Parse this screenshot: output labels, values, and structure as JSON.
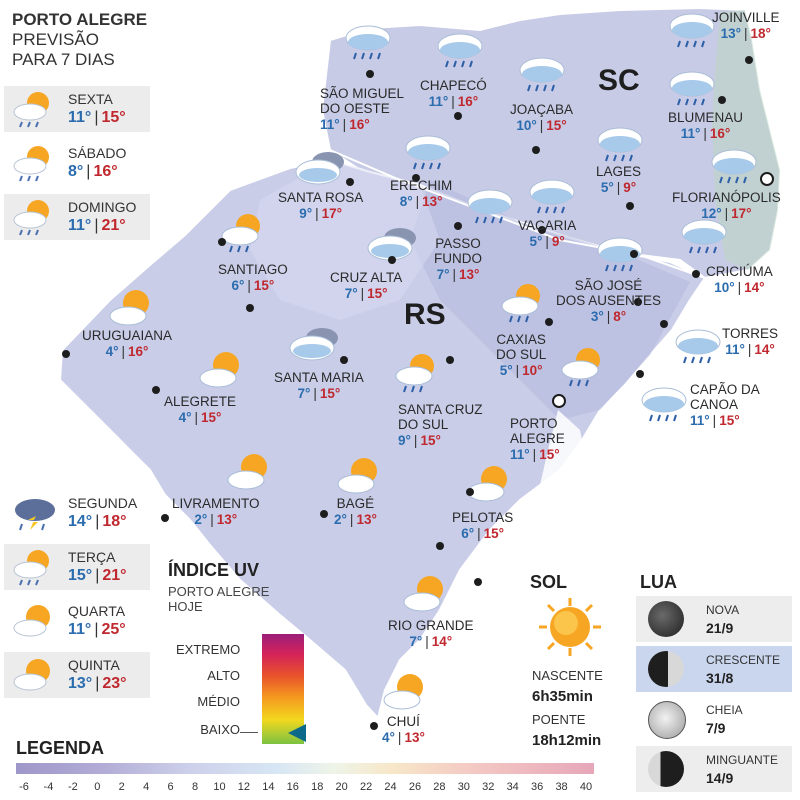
{
  "header": {
    "line1": "PORTO ALEGRE",
    "line2": "PREVISÃO",
    "line3": "PARA 7 DIAS"
  },
  "forecast": [
    {
      "day": "SEXTA",
      "min": "11°",
      "max": "15°",
      "icon": "sun-cloud-rain-icon"
    },
    {
      "day": "SÁBADO",
      "min": "8°",
      "max": "16°",
      "icon": "sun-cloud-rain-icon"
    },
    {
      "day": "DOMINGO",
      "min": "11°",
      "max": "21°",
      "icon": "sun-cloud-rain-icon"
    },
    {
      "day": "SEGUNDA",
      "min": "14°",
      "max": "18°",
      "icon": "storm-cloud-icon"
    },
    {
      "day": "TERÇA",
      "min": "15°",
      "max": "21°",
      "icon": "sun-cloud-rain-icon"
    },
    {
      "day": "QUARTA",
      "min": "11°",
      "max": "25°",
      "icon": "sun-cloud-icon"
    },
    {
      "day": "QUINTA",
      "min": "13°",
      "max": "23°",
      "icon": "sun-cloud-icon"
    }
  ],
  "states": {
    "sc": "SC",
    "rs": "RS"
  },
  "cities": [
    {
      "name": "JOINVILLE",
      "min": "13°",
      "max": "18°",
      "icon": "rain-cloud-icon"
    },
    {
      "name": "CHAPECÓ",
      "min": "11°",
      "max": "16°",
      "icon": "rain-cloud-icon"
    },
    {
      "name": "SÃO MIGUEL DO OESTE",
      "name_l1": "SÃO MIGUEL",
      "name_l2": "DO OESTE",
      "min": "11°",
      "max": "16°",
      "icon": "rain-cloud-icon"
    },
    {
      "name": "JOAÇABA",
      "min": "10°",
      "max": "15°",
      "icon": "rain-cloud-icon"
    },
    {
      "name": "BLUMENAU",
      "min": "11°",
      "max": "16°",
      "icon": "rain-cloud-icon"
    },
    {
      "name": "LAGES",
      "min": "5°",
      "max": "9°",
      "icon": "rain-cloud-icon"
    },
    {
      "name": "FLORIANÓPOLIS",
      "min": "12°",
      "max": "17°",
      "icon": "rain-cloud-icon"
    },
    {
      "name": "SANTA ROSA",
      "min": "9°",
      "max": "17°",
      "icon": "cloudy-icon"
    },
    {
      "name": "ERECHIM",
      "min": "8°",
      "max": "13°",
      "icon": "rain-cloud-icon"
    },
    {
      "name": "PASSO FUNDO",
      "name_l1": "PASSO",
      "name_l2": "FUNDO",
      "min": "7°",
      "max": "13°",
      "icon": "rain-cloud-icon"
    },
    {
      "name": "VACARIA",
      "min": "5°",
      "max": "9°",
      "icon": "rain-cloud-icon"
    },
    {
      "name": "SANTIAGO",
      "min": "6°",
      "max": "15°",
      "icon": "sun-cloud-rain-icon"
    },
    {
      "name": "CRUZ ALTA",
      "min": "7°",
      "max": "15°",
      "icon": "cloudy-icon"
    },
    {
      "name": "SÃO JOSÉ DOS AUSENTES",
      "name_l1": "SÃO JOSÉ",
      "name_l2": "DOS AUSENTES",
      "min": "3°",
      "max": "8°",
      "icon": "rain-cloud-icon"
    },
    {
      "name": "CRICIÚMA",
      "min": "10°",
      "max": "14°",
      "icon": "rain-cloud-icon"
    },
    {
      "name": "URUGUAIANA",
      "min": "4°",
      "max": "16°",
      "icon": "sun-cloud-icon"
    },
    {
      "name": "CAXIAS DO SUL",
      "name_l1": "CAXIAS",
      "name_l2": "DO SUL",
      "min": "5°",
      "max": "10°",
      "icon": "sun-cloud-rain-icon"
    },
    {
      "name": "TORRES",
      "min": "11°",
      "max": "14°",
      "icon": "rain-cloud-icon"
    },
    {
      "name": "SANTA MARIA",
      "min": "7°",
      "max": "15°",
      "icon": "cloudy-icon"
    },
    {
      "name": "ALEGRETE",
      "min": "4°",
      "max": "15°",
      "icon": "sun-cloud-icon"
    },
    {
      "name": "SANTA CRUZ DO SUL",
      "name_l1": "SANTA CRUZ",
      "name_l2": "DO SUL",
      "min": "9°",
      "max": "15°",
      "icon": "sun-cloud-rain-icon"
    },
    {
      "name": "CAPÃO DA CANOA",
      "name_l1": "CAPÃO DA",
      "name_l2": "CANOA",
      "min": "11°",
      "max": "15°",
      "icon": "rain-cloud-icon"
    },
    {
      "name": "PORTO ALEGRE",
      "name_l1": "PORTO",
      "name_l2": "ALEGRE",
      "min": "11°",
      "max": "15°",
      "icon": "sun-cloud-rain-icon"
    },
    {
      "name": "LIVRAMENTO",
      "min": "2°",
      "max": "13°",
      "icon": "sun-cloud-icon"
    },
    {
      "name": "BAGÉ",
      "min": "2°",
      "max": "13°",
      "icon": "sun-cloud-icon"
    },
    {
      "name": "PELOTAS",
      "min": "6°",
      "max": "15°",
      "icon": "sun-cloud-icon"
    },
    {
      "name": "RIO GRANDE",
      "min": "7°",
      "max": "14°",
      "icon": "sun-cloud-icon"
    },
    {
      "name": "CHUÍ",
      "min": "4°",
      "max": "13°",
      "icon": "sun-cloud-icon"
    }
  ],
  "uv": {
    "title": "ÍNDICE UV",
    "subtitle": "PORTO ALEGRE HOJE",
    "levels": [
      "EXTREMO",
      "ALTO",
      "MÉDIO",
      "BAIXO"
    ],
    "current_level": "BAIXO"
  },
  "sol": {
    "title": "SOL",
    "rise_label": "NASCENTE",
    "rise": "6h35min",
    "set_label": "POENTE",
    "set": "18h12min"
  },
  "lua": {
    "title": "LUA",
    "phases": [
      {
        "name": "NOVA",
        "date": "21/9"
      },
      {
        "name": "CRESCENTE",
        "date": "31/8"
      },
      {
        "name": "CHEIA",
        "date": "7/9"
      },
      {
        "name": "MINGUANTE",
        "date": "14/9"
      }
    ]
  },
  "legend": {
    "title": "LEGENDA",
    "ticks": [
      "-6",
      "-4",
      "-2",
      "0",
      "2",
      "4",
      "6",
      "8",
      "10",
      "12",
      "14",
      "16",
      "18",
      "20",
      "22",
      "24",
      "26",
      "28",
      "30",
      "32",
      "34",
      "36",
      "38",
      "40"
    ]
  },
  "colors": {
    "cold": "#2a6cae",
    "hot": "#c0282f",
    "map_fill": "#c9cde8",
    "uv_marker": "#0b6a8a"
  }
}
